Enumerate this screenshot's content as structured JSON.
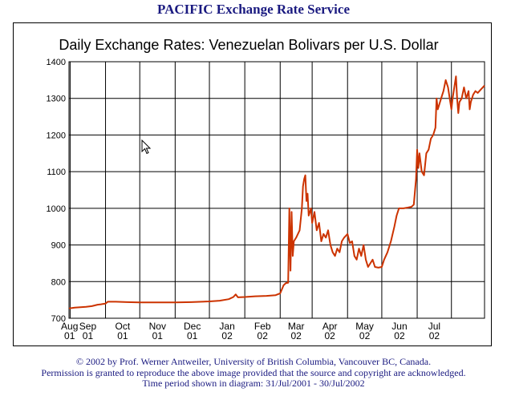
{
  "header": {
    "title": "PACIFIC Exchange Rate Service"
  },
  "footer": {
    "copyright": "© 2002 by Prof. Werner Antweiler, University of British Columbia, Vancouver BC, Canada.",
    "permission": "Permission is granted to reproduce the above image provided that the source and copyright are acknowledged.",
    "period": "Time period shown in diagram: 31/Jul/2001 - 30/Jul/2002"
  },
  "chart_data": {
    "type": "line",
    "title": "Daily Exchange Rates: Venezuelan Bolivars per U.S. Dollar",
    "xlabel": "",
    "ylabel": "",
    "ylim": [
      700,
      1400
    ],
    "yticks": [
      700,
      800,
      900,
      1000,
      1100,
      1200,
      1300,
      1400
    ],
    "x_tick_labels": [
      [
        "Aug",
        "01"
      ],
      [
        "Sep",
        "01"
      ],
      [
        "Oct",
        "01"
      ],
      [
        "Nov",
        "01"
      ],
      [
        "Dec",
        "01"
      ],
      [
        "Jan",
        "02"
      ],
      [
        "Feb",
        "02"
      ],
      [
        "Mar",
        "02"
      ],
      [
        "Apr",
        "02"
      ],
      [
        "May",
        "02"
      ],
      [
        "Jun",
        "02"
      ],
      [
        "Jul",
        "02"
      ]
    ],
    "x_range": [
      "2001-07-31",
      "2002-07-30"
    ],
    "grid": true,
    "line_color": "#cc3300",
    "series": [
      {
        "points": [
          [
            "2001-07-31",
            727
          ],
          [
            "2001-08-05",
            729
          ],
          [
            "2001-08-10",
            730
          ],
          [
            "2001-08-15",
            731
          ],
          [
            "2001-08-20",
            733
          ],
          [
            "2001-08-25",
            737
          ],
          [
            "2001-08-28",
            738
          ],
          [
            "2001-09-01",
            740
          ],
          [
            "2001-09-03",
            745
          ],
          [
            "2001-09-10",
            745
          ],
          [
            "2001-09-20",
            744
          ],
          [
            "2001-10-01",
            743
          ],
          [
            "2001-10-15",
            743
          ],
          [
            "2001-11-01",
            743
          ],
          [
            "2001-11-15",
            744
          ],
          [
            "2001-12-01",
            746
          ],
          [
            "2001-12-10",
            748
          ],
          [
            "2001-12-18",
            752
          ],
          [
            "2001-12-22",
            758
          ],
          [
            "2001-12-24",
            765
          ],
          [
            "2001-12-26",
            757
          ],
          [
            "2002-01-01",
            758
          ],
          [
            "2002-01-10",
            760
          ],
          [
            "2002-01-20",
            761
          ],
          [
            "2002-01-28",
            763
          ],
          [
            "2002-02-01",
            768
          ],
          [
            "2002-02-04",
            790
          ],
          [
            "2002-02-06",
            796
          ],
          [
            "2002-02-08",
            797
          ],
          [
            "2002-02-09",
            1000
          ],
          [
            "2002-02-10",
            830
          ],
          [
            "2002-02-11",
            990
          ],
          [
            "2002-02-12",
            870
          ],
          [
            "2002-02-13",
            910
          ],
          [
            "2002-02-15",
            920
          ],
          [
            "2002-02-18",
            940
          ],
          [
            "2002-02-20",
            1000
          ],
          [
            "2002-02-21",
            1060
          ],
          [
            "2002-02-22",
            1080
          ],
          [
            "2002-02-23",
            1090
          ],
          [
            "2002-02-24",
            1020
          ],
          [
            "2002-02-25",
            1040
          ],
          [
            "2002-02-26",
            980
          ],
          [
            "2002-02-28",
            1000
          ],
          [
            "2002-03-01",
            960
          ],
          [
            "2002-03-03",
            990
          ],
          [
            "2002-03-05",
            940
          ],
          [
            "2002-03-07",
            960
          ],
          [
            "2002-03-09",
            910
          ],
          [
            "2002-03-11",
            930
          ],
          [
            "2002-03-13",
            920
          ],
          [
            "2002-03-15",
            940
          ],
          [
            "2002-03-17",
            900
          ],
          [
            "2002-03-19",
            880
          ],
          [
            "2002-03-21",
            870
          ],
          [
            "2002-03-23",
            890
          ],
          [
            "2002-03-25",
            880
          ],
          [
            "2002-03-27",
            910
          ],
          [
            "2002-03-29",
            920
          ],
          [
            "2002-04-01",
            930
          ],
          [
            "2002-04-03",
            905
          ],
          [
            "2002-04-05",
            910
          ],
          [
            "2002-04-07",
            870
          ],
          [
            "2002-04-09",
            860
          ],
          [
            "2002-04-11",
            890
          ],
          [
            "2002-04-13",
            870
          ],
          [
            "2002-04-15",
            900
          ],
          [
            "2002-04-17",
            860
          ],
          [
            "2002-04-19",
            840
          ],
          [
            "2002-04-21",
            850
          ],
          [
            "2002-04-23",
            860
          ],
          [
            "2002-04-25",
            840
          ],
          [
            "2002-04-28",
            838
          ],
          [
            "2002-05-01",
            840
          ],
          [
            "2002-05-03",
            860
          ],
          [
            "2002-05-06",
            880
          ],
          [
            "2002-05-09",
            910
          ],
          [
            "2002-05-12",
            950
          ],
          [
            "2002-05-14",
            980
          ],
          [
            "2002-05-16",
            1000
          ],
          [
            "2002-05-20",
            1000
          ],
          [
            "2002-05-24",
            1002
          ],
          [
            "2002-05-27",
            1004
          ],
          [
            "2002-05-29",
            1010
          ],
          [
            "2002-05-31",
            1080
          ],
          [
            "2002-06-01",
            1160
          ],
          [
            "2002-06-02",
            1110
          ],
          [
            "2002-06-03",
            1150
          ],
          [
            "2002-06-05",
            1100
          ],
          [
            "2002-06-07",
            1090
          ],
          [
            "2002-06-09",
            1150
          ],
          [
            "2002-06-11",
            1160
          ],
          [
            "2002-06-13",
            1190
          ],
          [
            "2002-06-15",
            1200
          ],
          [
            "2002-06-17",
            1220
          ],
          [
            "2002-06-18",
            1300
          ],
          [
            "2002-06-19",
            1270
          ],
          [
            "2002-06-20",
            1280
          ],
          [
            "2002-06-22",
            1300
          ],
          [
            "2002-06-24",
            1320
          ],
          [
            "2002-06-26",
            1350
          ],
          [
            "2002-06-28",
            1330
          ],
          [
            "2002-06-30",
            1290
          ],
          [
            "2002-07-01",
            1270
          ],
          [
            "2002-07-02",
            1300
          ],
          [
            "2002-07-04",
            1340
          ],
          [
            "2002-07-05",
            1360
          ],
          [
            "2002-07-06",
            1300
          ],
          [
            "2002-07-07",
            1260
          ],
          [
            "2002-07-08",
            1290
          ],
          [
            "2002-07-10",
            1300
          ],
          [
            "2002-07-12",
            1330
          ],
          [
            "2002-07-14",
            1300
          ],
          [
            "2002-07-16",
            1320
          ],
          [
            "2002-07-17",
            1270
          ],
          [
            "2002-07-18",
            1290
          ],
          [
            "2002-07-20",
            1310
          ],
          [
            "2002-07-22",
            1320
          ],
          [
            "2002-07-24",
            1315
          ],
          [
            "2002-07-27",
            1325
          ],
          [
            "2002-07-30",
            1335
          ]
        ]
      }
    ]
  }
}
